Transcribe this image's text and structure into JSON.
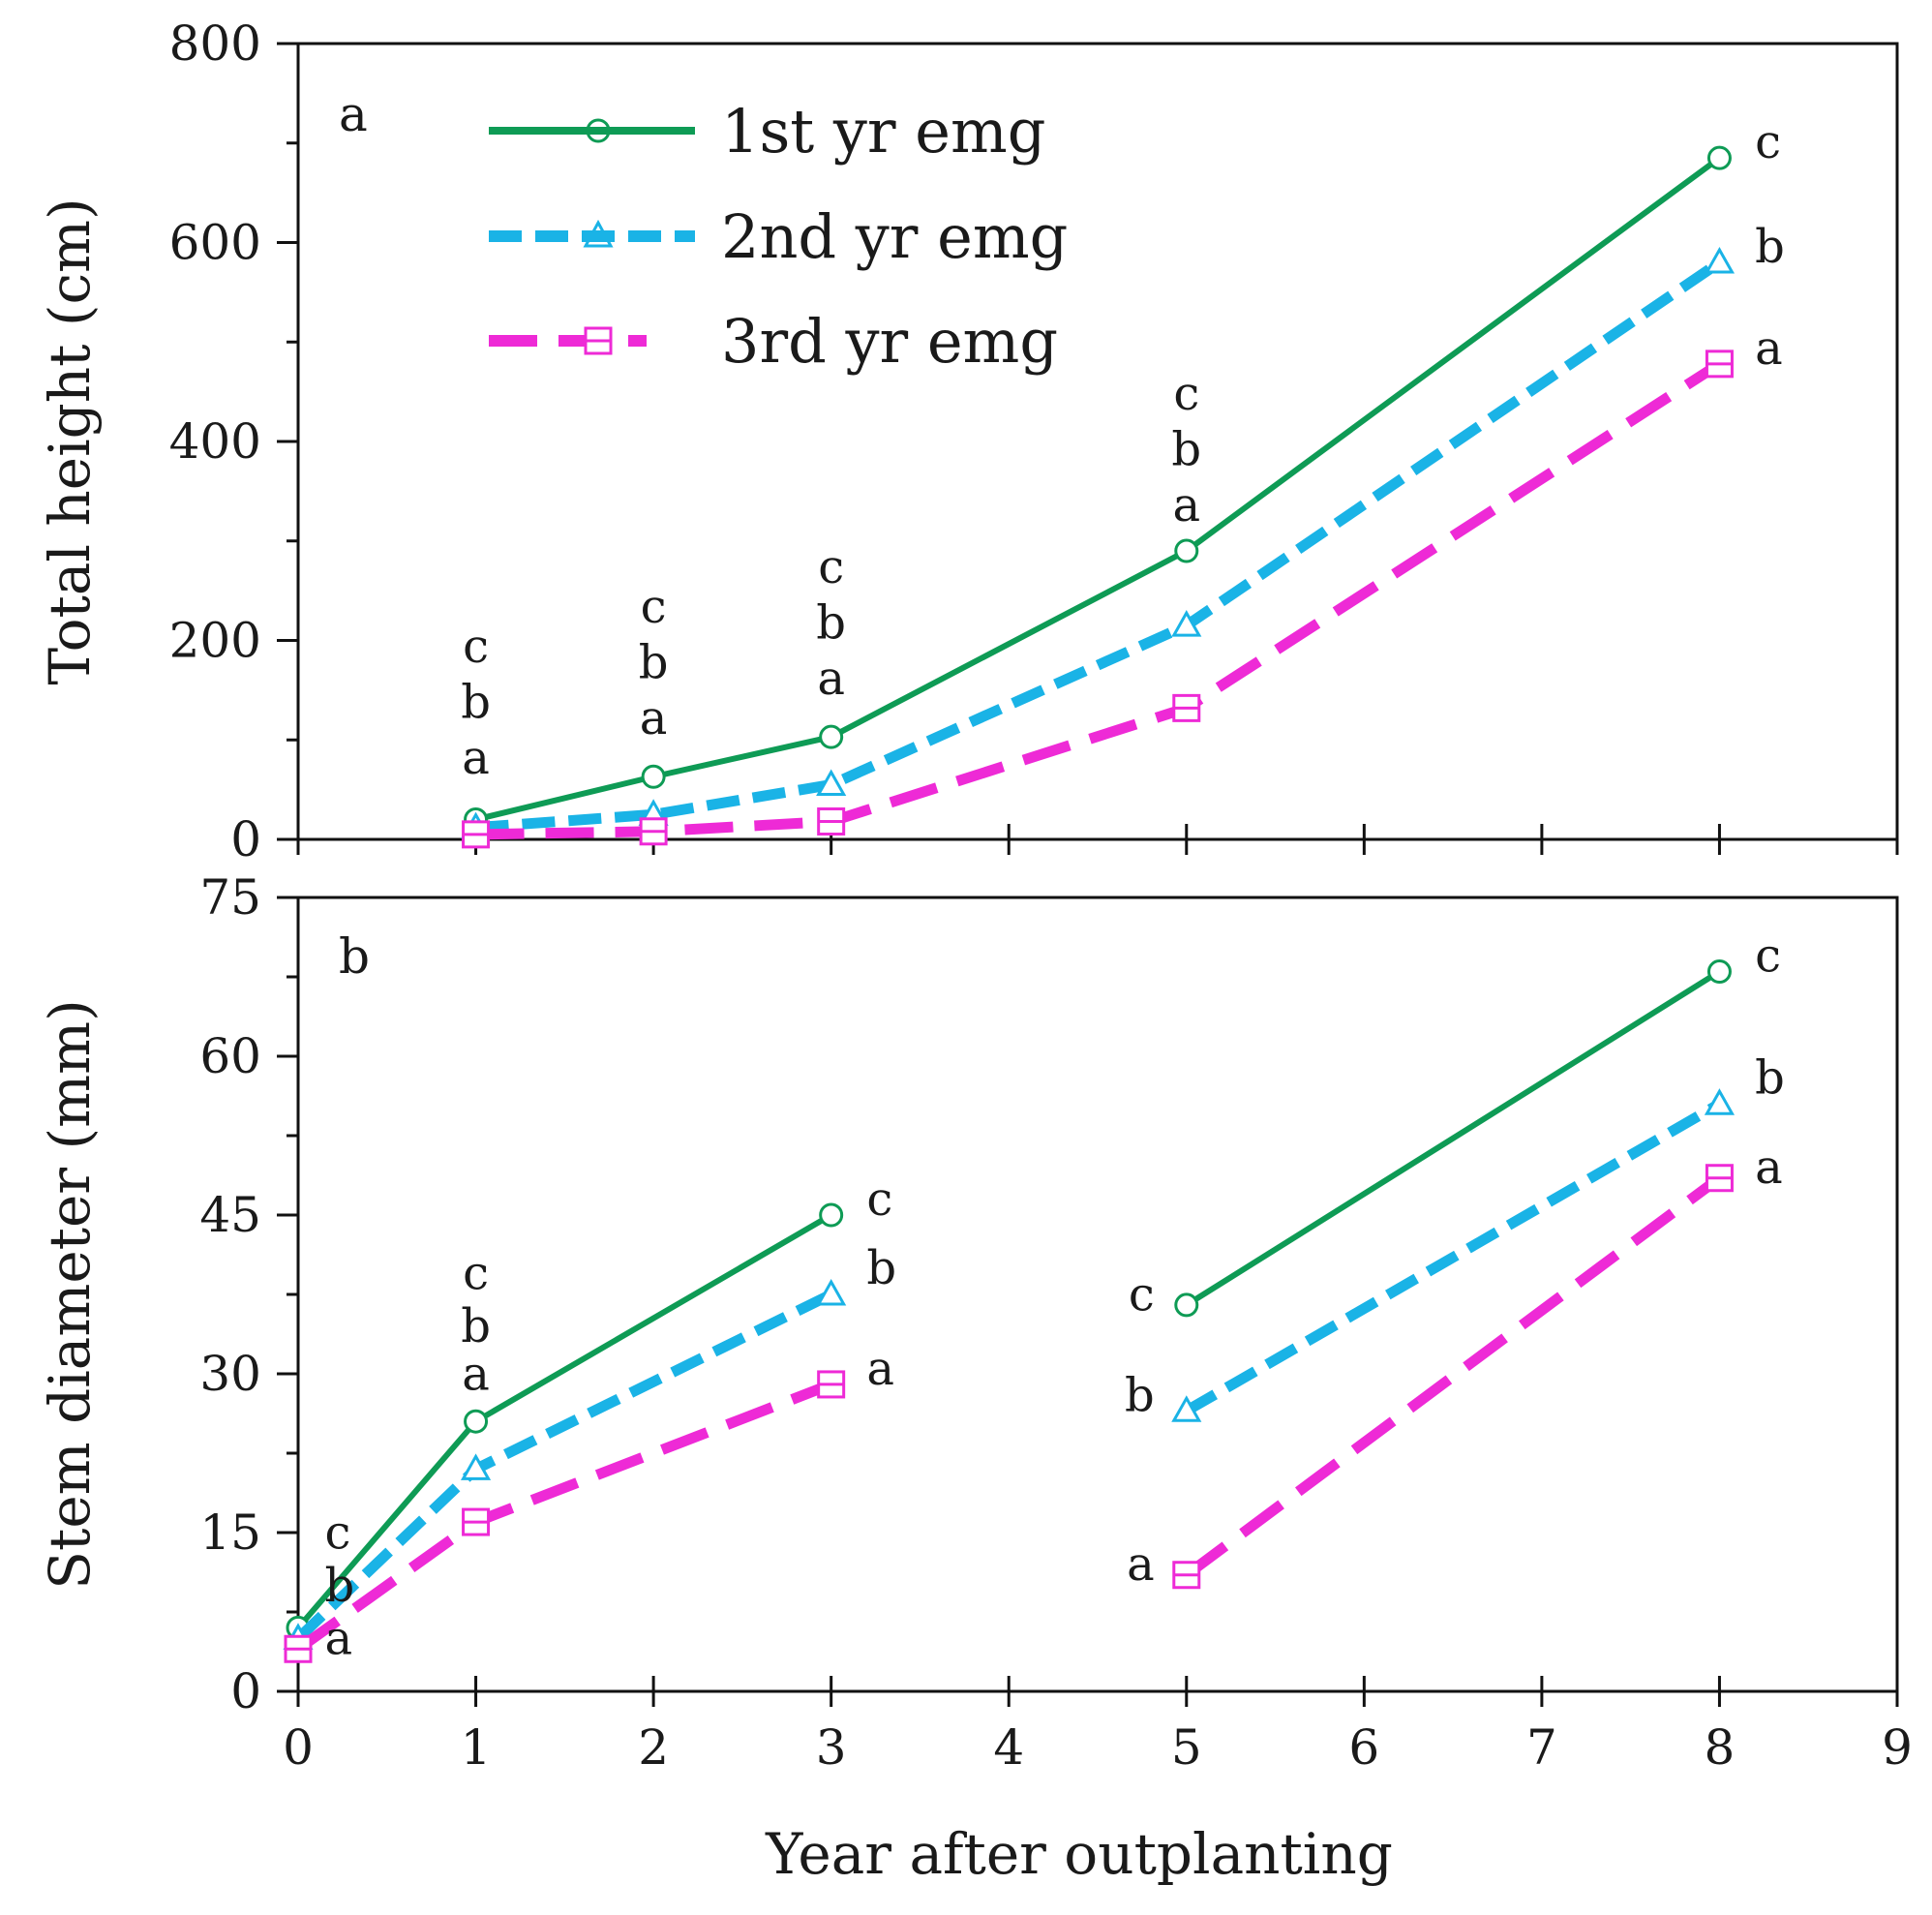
{
  "chart_data": [
    {
      "type": "line",
      "panel_label": "a",
      "ylabel": "Total height (cm)",
      "xlabel": "",
      "xlim": [
        0,
        9
      ],
      "ylim": [
        0,
        800
      ],
      "x_ticks": [
        0,
        1,
        2,
        3,
        4,
        5,
        6,
        7,
        8,
        9
      ],
      "y_ticks": [
        0,
        200,
        400,
        600,
        800
      ],
      "y_tick_labels": [
        "0",
        "200",
        "400",
        "600",
        "800"
      ],
      "legend_position": "top-left",
      "segments": [
        [
          1,
          2,
          3,
          5,
          8
        ]
      ],
      "series": [
        {
          "name": "1st yr emg",
          "color": "#0e9b55",
          "dash": "solid",
          "marker": "circle",
          "x": [
            1,
            2,
            3,
            5,
            8
          ],
          "values": [
            20,
            63,
            103,
            290,
            685
          ]
        },
        {
          "name": "2nd yr emg",
          "color": "#1ab3e6",
          "dash": "dash",
          "marker": "triangle",
          "x": [
            1,
            2,
            3,
            5,
            8
          ],
          "values": [
            12,
            25,
            55,
            215,
            580
          ]
        },
        {
          "name": "3rd yr emg",
          "color": "#ee2ad6",
          "dash": "longdash",
          "marker": "square",
          "x": [
            1,
            2,
            3,
            5,
            8
          ],
          "values": [
            5,
            8,
            18,
            132,
            478
          ]
        }
      ],
      "annotations": [
        {
          "text": "c",
          "x": 1,
          "y": 178,
          "align": "middle"
        },
        {
          "text": "b",
          "x": 1,
          "y": 122,
          "align": "middle"
        },
        {
          "text": "a",
          "x": 1,
          "y": 66,
          "align": "middle"
        },
        {
          "text": "c",
          "x": 2,
          "y": 218,
          "align": "middle"
        },
        {
          "text": "b",
          "x": 2,
          "y": 162,
          "align": "middle"
        },
        {
          "text": "a",
          "x": 2,
          "y": 106,
          "align": "middle"
        },
        {
          "text": "c",
          "x": 3,
          "y": 258,
          "align": "middle"
        },
        {
          "text": "b",
          "x": 3,
          "y": 202,
          "align": "middle"
        },
        {
          "text": "a",
          "x": 3,
          "y": 146,
          "align": "middle"
        },
        {
          "text": "c",
          "x": 5,
          "y": 432,
          "align": "middle"
        },
        {
          "text": "b",
          "x": 5,
          "y": 376,
          "align": "middle"
        },
        {
          "text": "a",
          "x": 5,
          "y": 320,
          "align": "middle"
        },
        {
          "text": "c",
          "x": 8.2,
          "y": 685,
          "align": "start"
        },
        {
          "text": "b",
          "x": 8.2,
          "y": 580,
          "align": "start"
        },
        {
          "text": "a",
          "x": 8.2,
          "y": 478,
          "align": "start"
        }
      ],
      "legend": [
        {
          "label": "1st yr emg"
        },
        {
          "label": "2nd yr emg"
        },
        {
          "label": "3rd yr emg"
        }
      ]
    },
    {
      "type": "line",
      "panel_label": "b",
      "ylabel": "Stem diameter (mm)",
      "xlabel": "Year after outplanting",
      "xlim": [
        0,
        9
      ],
      "ylim": [
        0,
        75
      ],
      "x_ticks": [
        0,
        1,
        2,
        3,
        4,
        5,
        6,
        7,
        8,
        9
      ],
      "x_tick_labels": [
        "0",
        "1",
        "2",
        "3",
        "4",
        "5",
        "6",
        "7",
        "8",
        "9"
      ],
      "y_ticks": [
        0,
        15,
        30,
        45,
        60,
        75
      ],
      "y_tick_labels": [
        "0",
        "15",
        "30",
        "45",
        "60",
        "75"
      ],
      "segments": [
        [
          0,
          1,
          3
        ],
        [
          5,
          8
        ]
      ],
      "series": [
        {
          "name": "1st yr emg",
          "color": "#0e9b55",
          "dash": "solid",
          "marker": "circle",
          "x": [
            0,
            1,
            3,
            5,
            8
          ],
          "values": [
            6,
            25.5,
            45,
            36.5,
            68
          ]
        },
        {
          "name": "2nd yr emg",
          "color": "#1ab3e6",
          "dash": "dash",
          "marker": "triangle",
          "x": [
            0,
            1,
            3,
            5,
            8
          ],
          "values": [
            5,
            21,
            37.5,
            26.5,
            55.5
          ]
        },
        {
          "name": "3rd yr emg",
          "color": "#ee2ad6",
          "dash": "longdash",
          "marker": "square",
          "x": [
            0,
            1,
            3,
            5,
            8
          ],
          "values": [
            4,
            16,
            29,
            11,
            48.5
          ]
        }
      ],
      "annotations": [
        {
          "text": "c",
          "x": 0.15,
          "y": 13.5,
          "align": "start"
        },
        {
          "text": "b",
          "x": 0.15,
          "y": 8.5,
          "align": "start"
        },
        {
          "text": "a",
          "x": 0.15,
          "y": 3.5,
          "align": "start"
        },
        {
          "text": "c",
          "x": 1,
          "y": 38,
          "align": "middle"
        },
        {
          "text": "b",
          "x": 1,
          "y": 33,
          "align": "middle"
        },
        {
          "text": "a",
          "x": 1,
          "y": 28.5,
          "align": "middle"
        },
        {
          "text": "c",
          "x": 3.2,
          "y": 45,
          "align": "start"
        },
        {
          "text": "b",
          "x": 3.2,
          "y": 38.5,
          "align": "start"
        },
        {
          "text": "a",
          "x": 3.2,
          "y": 29,
          "align": "start"
        },
        {
          "text": "c",
          "x": 4.82,
          "y": 36,
          "align": "end"
        },
        {
          "text": "b",
          "x": 4.82,
          "y": 26.5,
          "align": "end"
        },
        {
          "text": "a",
          "x": 4.82,
          "y": 10.5,
          "align": "end"
        },
        {
          "text": "c",
          "x": 8.2,
          "y": 68,
          "align": "start"
        },
        {
          "text": "b",
          "x": 8.2,
          "y": 56.5,
          "align": "start"
        },
        {
          "text": "a",
          "x": 8.2,
          "y": 48,
          "align": "start"
        }
      ]
    }
  ]
}
